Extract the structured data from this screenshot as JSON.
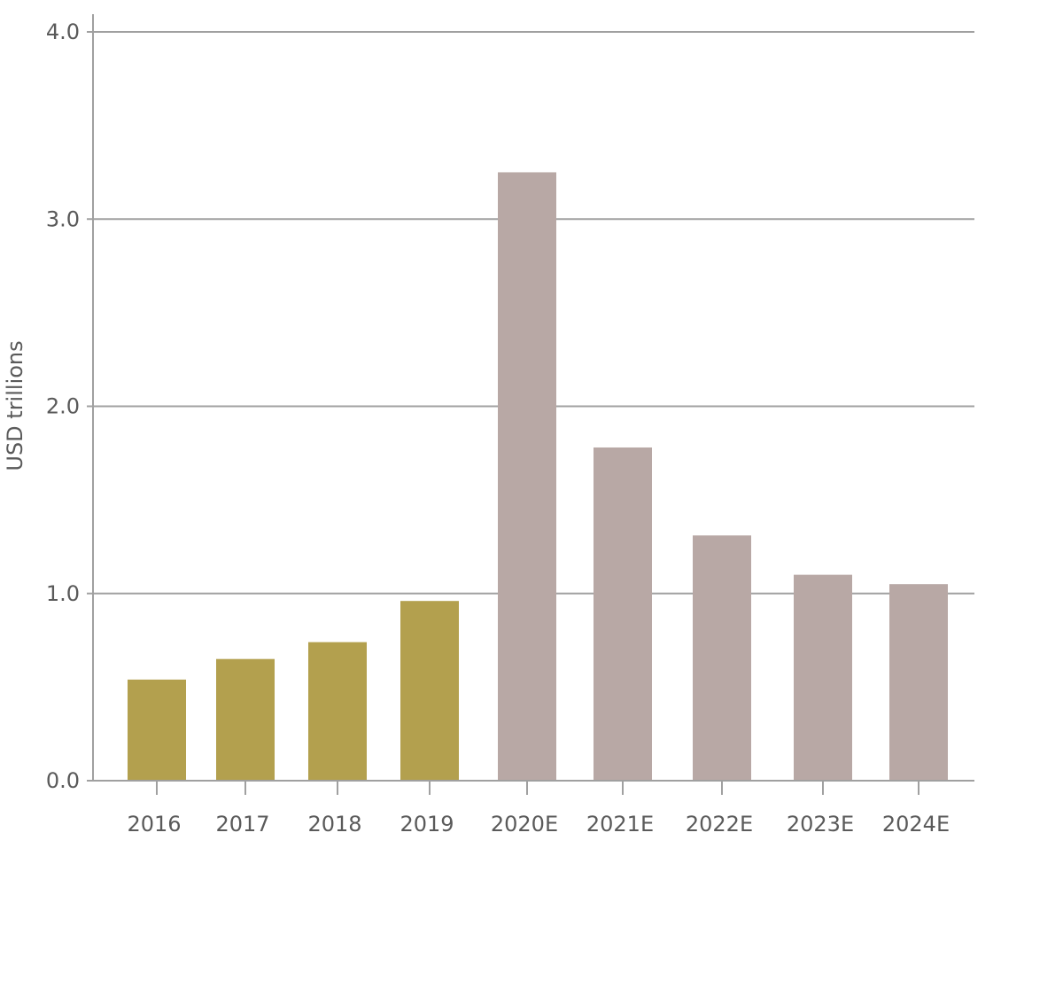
{
  "chart_data": {
    "type": "bar",
    "categories": [
      "2016",
      "2017",
      "2018",
      "2019",
      "2020E",
      "2021E",
      "2022E",
      "2023E",
      "2024E"
    ],
    "values": [
      0.54,
      0.65,
      0.74,
      0.96,
      3.25,
      1.78,
      1.31,
      1.1,
      1.05
    ],
    "title": "",
    "xlabel": "",
    "ylabel": "USD trillions",
    "ylim": [
      0,
      4
    ],
    "yticks": [
      "0.0",
      "1.0",
      "2.0",
      "3.0",
      "4.0"
    ],
    "grid": true,
    "legend": "none",
    "colors": {
      "actual": "#b3a04e",
      "estimate": "#b8a8a5",
      "axis": "#a0a0a0",
      "grid": "#a0a0a0",
      "text": "#5a5a5a"
    },
    "bar_color_keys": [
      "actual",
      "actual",
      "actual",
      "actual",
      "estimate",
      "estimate",
      "estimate",
      "estimate",
      "estimate"
    ]
  }
}
